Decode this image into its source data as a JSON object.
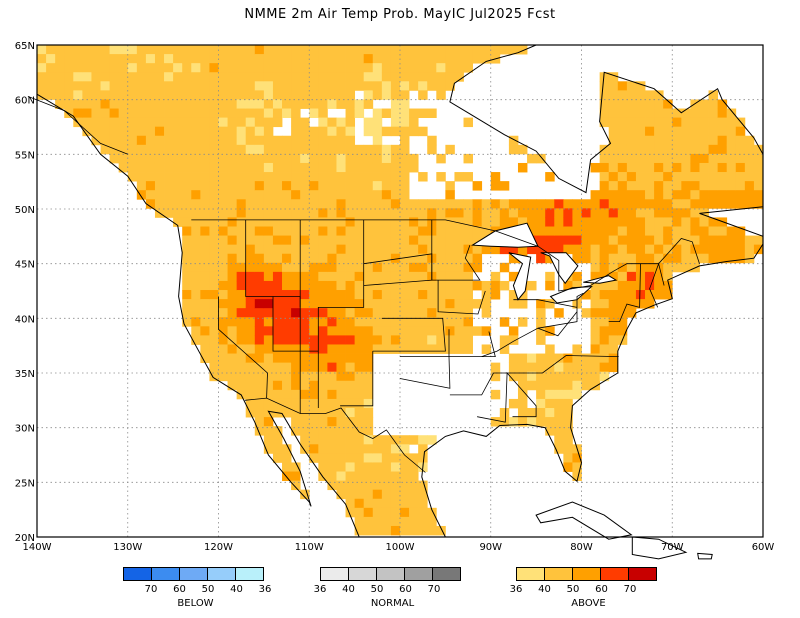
{
  "title": "NMME 2m Air Temp Prob. MayIC  Jul2025 Fcst",
  "axes": {
    "lon_ticks": [
      "140W",
      "130W",
      "120W",
      "110W",
      "100W",
      "90W",
      "80W",
      "70W",
      "60W"
    ],
    "lat_ticks": [
      "65N",
      "60N",
      "55N",
      "50N",
      "45N",
      "40N",
      "35N",
      "30N",
      "25N",
      "20N"
    ]
  },
  "legend": {
    "below": {
      "name": "BELOW",
      "colors": [
        "#1464e6",
        "#3c8cf0",
        "#6eaaf5",
        "#96cdfa",
        "#b9f0fa"
      ],
      "labels": [
        "70",
        "60",
        "50",
        "40",
        "36"
      ]
    },
    "normal": {
      "name": "NORMAL",
      "colors": [
        "#ebebeb",
        "#d7d7d7",
        "#c3c3c3",
        "#a0a0a0",
        "#787878"
      ],
      "labels": [
        "36",
        "40",
        "50",
        "60",
        "70"
      ]
    },
    "above": {
      "name": "ABOVE",
      "colors": [
        "#ffe178",
        "#ffc33c",
        "#ffa000",
        "#ff3c00",
        "#c80000"
      ],
      "labels": [
        "36",
        "40",
        "50",
        "60",
        "70"
      ]
    }
  }
}
